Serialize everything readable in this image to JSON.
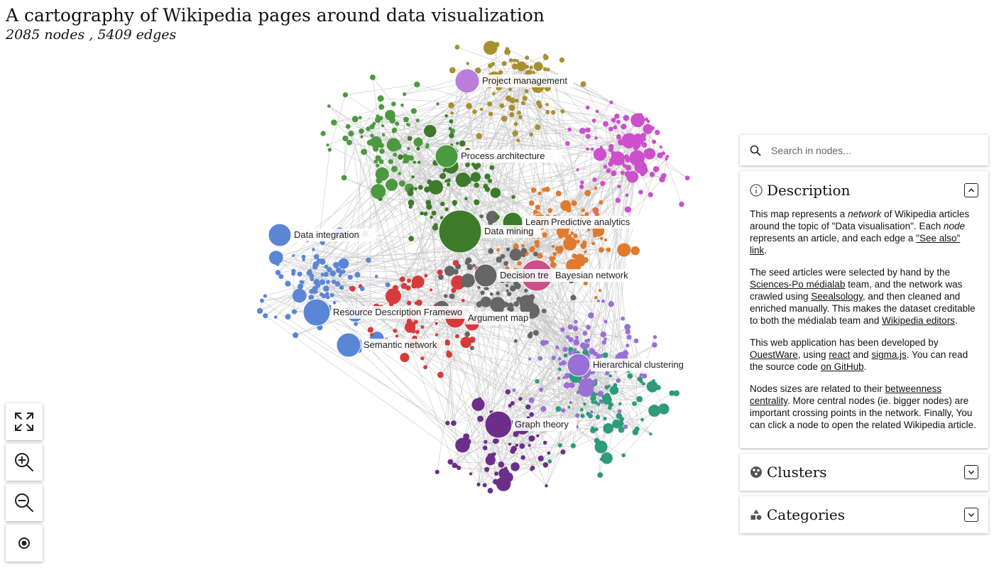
{
  "title": "A cartography of Wikipedia pages around data visualization",
  "subtitle": "2085 nodes , 5409 edges",
  "graph": {
    "cluster_colors": [
      "#5b86d6",
      "#4c9a3f",
      "#3d7a2b",
      "#d63b3b",
      "#e07a2e",
      "#cc4fcc",
      "#9a70d6",
      "#a89030",
      "#2e9b7a",
      "#666666",
      "#6b2f8a"
    ],
    "labels": [
      "Project management",
      "Process architecture",
      "Data integration",
      "Learni",
      "Predictive analytics",
      "Data mining",
      "Decision tre",
      "Bayesian network",
      "Resource Description Framewo",
      "Argument map",
      "Semantic network",
      "Hierarchical clustering",
      "Graph theory"
    ]
  },
  "controls": {
    "fullscreen_icon": "fullscreen-icon",
    "zoom_in_icon": "zoom-in-icon",
    "zoom_out_icon": "zoom-out-icon",
    "reset_icon": "reset-view-icon"
  },
  "search": {
    "placeholder": "Search in nodes..."
  },
  "description": {
    "heading": "Description",
    "p1": [
      {
        "t": "This map represents a "
      },
      {
        "t": "network",
        "i": true
      },
      {
        "t": " of Wikipedia articles around the topic of \"Data visualisation\". Each "
      },
      {
        "t": "node",
        "i": true
      },
      {
        "t": " represents an article, and each edge a "
      },
      {
        "t": "\"See also\" link",
        "a": true
      },
      {
        "t": "."
      }
    ],
    "p2": [
      {
        "t": "The seed articles were selected by hand by the "
      },
      {
        "t": "Sciences-Po médialab",
        "a": true
      },
      {
        "t": " team, and the network was crawled using "
      },
      {
        "t": "Seealsology",
        "a": true
      },
      {
        "t": ", and then cleaned and enriched manually. This makes the dataset creditable to both the médialab team and "
      },
      {
        "t": "Wikipedia editors",
        "a": true
      },
      {
        "t": "."
      }
    ],
    "p3": [
      {
        "t": "This web application has been developed by "
      },
      {
        "t": "OuestWare",
        "a": true
      },
      {
        "t": ", using "
      },
      {
        "t": "react",
        "a": true
      },
      {
        "t": " and "
      },
      {
        "t": "sigma.js",
        "a": true
      },
      {
        "t": ". You can read the source code "
      },
      {
        "t": "on GitHub",
        "a": true
      },
      {
        "t": "."
      }
    ],
    "p4": [
      {
        "t": "Nodes sizes are related to their "
      },
      {
        "t": "betweenness centrality",
        "a": true
      },
      {
        "t": ". More central nodes (ie. bigger nodes) are important crossing points in the network. Finally, You can click a node to open the related Wikipedia article."
      }
    ]
  },
  "clusters": {
    "heading": "Clusters"
  },
  "categories": {
    "heading": "Categories"
  }
}
